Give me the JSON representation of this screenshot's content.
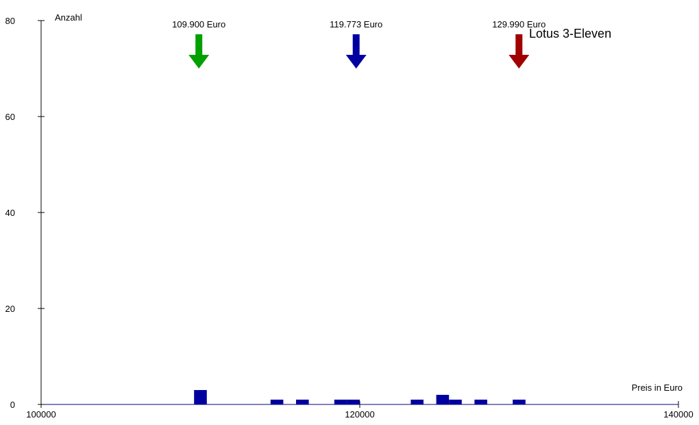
{
  "chart_data": {
    "type": "bar",
    "title": "Lotus 3-Eleven",
    "xlabel": "Preis in Euro",
    "ylabel": "Anzahl",
    "xlim": [
      100000,
      140000
    ],
    "ylim": [
      0,
      80
    ],
    "x_ticks": [
      100000,
      120000,
      140000
    ],
    "y_ticks": [
      0,
      20,
      40,
      60,
      80
    ],
    "bin_width": 800,
    "bar_color": "#0000a0",
    "bars": [
      {
        "x": 110000,
        "value": 3
      },
      {
        "x": 114800,
        "value": 1
      },
      {
        "x": 116400,
        "value": 1
      },
      {
        "x": 118800,
        "value": 1
      },
      {
        "x": 119600,
        "value": 1
      },
      {
        "x": 123600,
        "value": 1
      },
      {
        "x": 125200,
        "value": 2
      },
      {
        "x": 126000,
        "value": 1
      },
      {
        "x": 127600,
        "value": 1
      },
      {
        "x": 130000,
        "value": 1
      }
    ],
    "markers": [
      {
        "label": "109.900 Euro",
        "x": 109900,
        "color": "#00a000"
      },
      {
        "label": "119.773 Euro",
        "x": 119773,
        "color": "#0000a0"
      },
      {
        "label": "129.990 Euro",
        "x": 129990,
        "color": "#a00000"
      }
    ]
  }
}
